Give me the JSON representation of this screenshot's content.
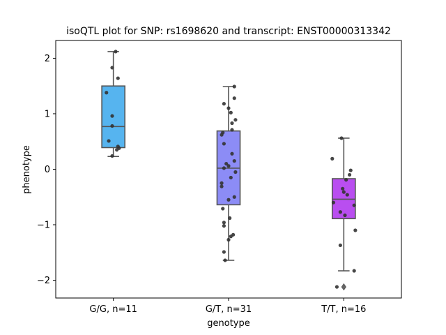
{
  "chart_data": {
    "type": "box",
    "title": "isoQTL plot for SNP: rs1698620 and transcript: ENST00000313342",
    "xlabel": "genotype",
    "ylabel": "phenotype",
    "ylim": [
      -2.32,
      2.32
    ],
    "yticks": [
      2,
      1,
      0,
      -1,
      -2
    ],
    "ytick_labels": [
      "2",
      "1",
      "0",
      "−1",
      "−2"
    ],
    "groups": [
      {
        "label": "G/G, n=11",
        "color": "#56b4ef",
        "box": {
          "q1": 0.39,
          "median": 0.77,
          "q3": 1.5,
          "whisker_low": 0.23,
          "whisker_high": 2.12
        },
        "outliers": [],
        "points": [
          {
            "dx": 0.02,
            "y": 2.12
          },
          {
            "dx": -0.01,
            "y": 1.83
          },
          {
            "dx": 0.04,
            "y": 1.64
          },
          {
            "dx": -0.06,
            "y": 1.38
          },
          {
            "dx": -0.01,
            "y": 0.96
          },
          {
            "dx": -0.01,
            "y": 0.78
          },
          {
            "dx": -0.04,
            "y": 0.51
          },
          {
            "dx": 0.04,
            "y": 0.41
          },
          {
            "dx": 0.03,
            "y": 0.35
          },
          {
            "dx": 0.05,
            "y": 0.38
          },
          {
            "dx": -0.01,
            "y": 0.24
          }
        ]
      },
      {
        "label": "G/T, n=31",
        "color": "#8c8cf6",
        "box": {
          "q1": -0.64,
          "median": 0.02,
          "q3": 0.69,
          "whisker_low": -1.64,
          "whisker_high": 1.49
        },
        "outliers": [],
        "points": [
          {
            "dx": 0.05,
            "y": 1.49
          },
          {
            "dx": 0.05,
            "y": 1.28
          },
          {
            "dx": -0.04,
            "y": 1.18
          },
          {
            "dx": 0.0,
            "y": 1.1
          },
          {
            "dx": 0.02,
            "y": 1.02
          },
          {
            "dx": 0.06,
            "y": 0.89
          },
          {
            "dx": 0.03,
            "y": 0.83
          },
          {
            "dx": 0.03,
            "y": 0.71
          },
          {
            "dx": -0.05,
            "y": 0.66
          },
          {
            "dx": -0.06,
            "y": 0.62
          },
          {
            "dx": -0.04,
            "y": 0.46
          },
          {
            "dx": 0.03,
            "y": 0.28
          },
          {
            "dx": 0.05,
            "y": 0.15
          },
          {
            "dx": -0.02,
            "y": 0.1
          },
          {
            "dx": 0.0,
            "y": 0.06
          },
          {
            "dx": -0.04,
            "y": 0.02
          },
          {
            "dx": 0.06,
            "y": -0.05
          },
          {
            "dx": 0.02,
            "y": -0.15
          },
          {
            "dx": -0.06,
            "y": -0.25
          },
          {
            "dx": -0.06,
            "y": -0.31
          },
          {
            "dx": 0.05,
            "y": -0.5
          },
          {
            "dx": 0.0,
            "y": -0.55
          },
          {
            "dx": -0.05,
            "y": -0.71
          },
          {
            "dx": 0.01,
            "y": -0.88
          },
          {
            "dx": -0.04,
            "y": -0.96
          },
          {
            "dx": -0.04,
            "y": -1.02
          },
          {
            "dx": 0.04,
            "y": -1.18
          },
          {
            "dx": 0.0,
            "y": -1.27
          },
          {
            "dx": -0.04,
            "y": -1.49
          },
          {
            "dx": -0.03,
            "y": -1.64
          },
          {
            "dx": 0.02,
            "y": -1.21
          }
        ]
      },
      {
        "label": "T/T, n=16",
        "color": "#b94ef0",
        "box": {
          "q1": -0.89,
          "median": -0.54,
          "q3": -0.17,
          "whisker_low": -1.83,
          "whisker_high": 0.56
        },
        "outliers": [
          -2.12
        ],
        "points": [
          {
            "dx": -0.02,
            "y": 0.56
          },
          {
            "dx": -0.1,
            "y": 0.19
          },
          {
            "dx": 0.06,
            "y": -0.02
          },
          {
            "dx": 0.05,
            "y": -0.1
          },
          {
            "dx": 0.02,
            "y": -0.19
          },
          {
            "dx": -0.01,
            "y": -0.35
          },
          {
            "dx": 0.0,
            "y": -0.41
          },
          {
            "dx": 0.03,
            "y": -0.46
          },
          {
            "dx": -0.09,
            "y": -0.6
          },
          {
            "dx": 0.09,
            "y": -0.65
          },
          {
            "dx": -0.03,
            "y": -0.77
          },
          {
            "dx": 0.01,
            "y": -0.83
          },
          {
            "dx": 0.1,
            "y": -1.1
          },
          {
            "dx": -0.03,
            "y": -1.37
          },
          {
            "dx": 0.09,
            "y": -1.83
          },
          {
            "dx": -0.06,
            "y": -2.12
          }
        ]
      }
    ],
    "grid": false,
    "legend": "none"
  }
}
